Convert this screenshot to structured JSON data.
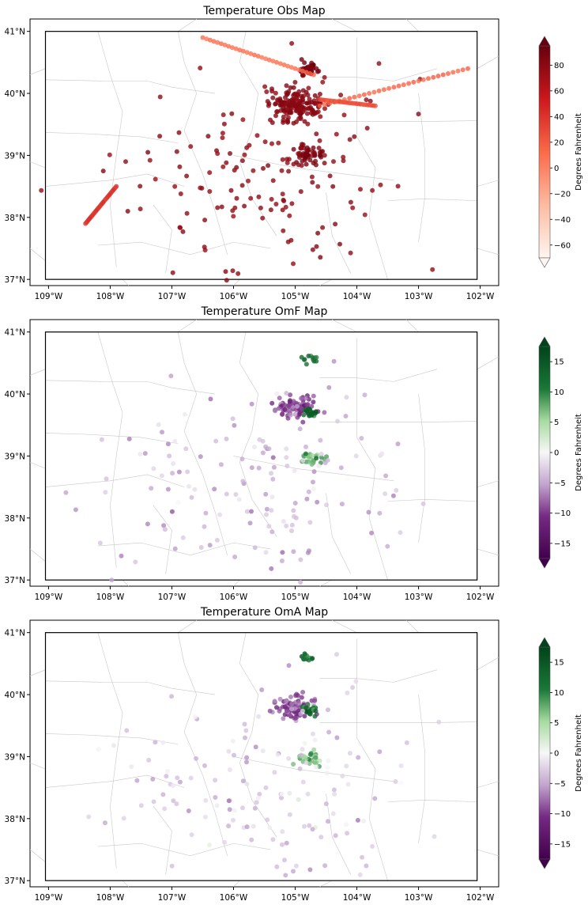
{
  "figure": {
    "panels": [
      {
        "id": "obs",
        "title": "Temperature Obs Map",
        "colormap": "Reds",
        "colorbar": {
          "label": "Degrees Fahrenheit",
          "ticks": [
            80,
            60,
            40,
            20,
            0,
            -20,
            -40,
            -60
          ],
          "range": [
            -70,
            95
          ],
          "extend": "both"
        }
      },
      {
        "id": "omf",
        "title": "Temperature OmF Map",
        "colormap": "PRGn",
        "colorbar": {
          "label": "Degrees Fahrenheit",
          "ticks": [
            15,
            10,
            5,
            0,
            -5,
            -10,
            -15
          ],
          "range": [
            -17.5,
            17.5
          ],
          "extend": "both"
        }
      },
      {
        "id": "oma",
        "title": "Temperature OmA Map",
        "colormap": "PRGn",
        "colorbar": {
          "label": "Degrees Fahrenheit",
          "ticks": [
            15,
            10,
            5,
            0,
            -5,
            -10,
            -15
          ],
          "range": [
            -17.5,
            17.5
          ],
          "extend": "both"
        }
      }
    ],
    "x_ticks": [
      "109°W",
      "108°W",
      "107°W",
      "106°W",
      "105°W",
      "104°W",
      "103°W",
      "102°W"
    ],
    "y_ticks": [
      "41°N",
      "40°N",
      "39°N",
      "38°N",
      "37°N"
    ],
    "lon_range": [
      -109.3,
      -101.7
    ],
    "lat_range": [
      36.9,
      41.2
    ]
  },
  "chart_data": [
    {
      "type": "scatter",
      "title": "Temperature Obs Map",
      "xlabel": "",
      "ylabel": "",
      "colorbar_label": "Degrees Fahrenheit",
      "x_ticks": [
        -109,
        -108,
        -107,
        -106,
        -105,
        -104,
        -103,
        -102
      ],
      "y_ticks": [
        41,
        40,
        39,
        38,
        37
      ],
      "color_range": [
        -70,
        95
      ],
      "clusters": [
        {
          "lon": -105.0,
          "lat": 39.8,
          "spread": 0.35,
          "count": 160,
          "value": 82
        },
        {
          "lon": -104.8,
          "lat": 40.4,
          "spread": 0.15,
          "count": 40,
          "value": 88
        },
        {
          "lon": -104.8,
          "lat": 39.0,
          "spread": 0.2,
          "count": 50,
          "value": 86
        },
        {
          "lon": -105.5,
          "lat": 38.6,
          "spread": 2.0,
          "count": 150,
          "value": 78
        }
      ],
      "tracks": [
        {
          "from": [
            -106.5,
            40.9
          ],
          "to": [
            -104.7,
            40.3
          ],
          "value": 10
        },
        {
          "from": [
            -104.6,
            39.8
          ],
          "to": [
            -102.2,
            40.4
          ],
          "value": 15
        },
        {
          "from": [
            -104.6,
            39.9
          ],
          "to": [
            -103.7,
            39.8
          ],
          "value": 25
        },
        {
          "from": [
            -107.9,
            38.5
          ],
          "to": [
            -108.4,
            37.9
          ],
          "value": 40
        }
      ]
    },
    {
      "type": "scatter",
      "title": "Temperature OmF Map",
      "colorbar_label": "Degrees Fahrenheit",
      "color_range": [
        -17.5,
        17.5
      ],
      "clusters": [
        {
          "lon": -105.0,
          "lat": 39.8,
          "spread": 0.25,
          "count": 90,
          "value": -9
        },
        {
          "lon": -104.75,
          "lat": 39.7,
          "spread": 0.1,
          "count": 25,
          "value": 14
        },
        {
          "lon": -104.75,
          "lat": 38.95,
          "spread": 0.15,
          "count": 30,
          "value": 8
        },
        {
          "lon": -104.8,
          "lat": 40.55,
          "spread": 0.1,
          "count": 12,
          "value": 13
        },
        {
          "lon": -105.5,
          "lat": 38.5,
          "spread": 2.0,
          "count": 150,
          "value": -4
        }
      ]
    },
    {
      "type": "scatter",
      "title": "Temperature OmA Map",
      "colorbar_label": "Degrees Fahrenheit",
      "color_range": [
        -17.5,
        17.5
      ],
      "clusters": [
        {
          "lon": -105.0,
          "lat": 39.8,
          "spread": 0.25,
          "count": 90,
          "value": -9
        },
        {
          "lon": -104.75,
          "lat": 39.75,
          "spread": 0.1,
          "count": 25,
          "value": 12
        },
        {
          "lon": -104.75,
          "lat": 38.95,
          "spread": 0.15,
          "count": 30,
          "value": 7
        },
        {
          "lon": -104.8,
          "lat": 40.6,
          "spread": 0.1,
          "count": 12,
          "value": 12
        },
        {
          "lon": -105.5,
          "lat": 38.5,
          "spread": 2.0,
          "count": 150,
          "value": -3
        }
      ]
    }
  ]
}
